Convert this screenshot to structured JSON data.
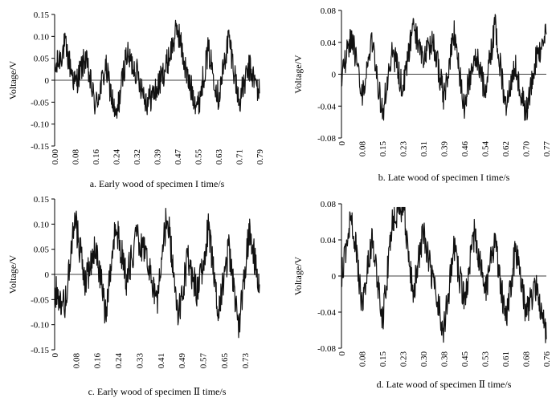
{
  "chart_data": [
    {
      "type": "line",
      "caption": "a. Early wood of specimen I time/s",
      "ylabel": "Voltage/V",
      "ylim": [
        -0.15,
        0.15
      ],
      "yticks": [
        -0.15,
        -0.1,
        -0.05,
        0,
        0.05,
        0.1,
        0.15
      ],
      "ytick_labels": [
        "-0.15",
        "-0.10",
        "-0.05",
        "0",
        "0.05",
        "0.10",
        "0.15"
      ],
      "xlim": [
        0,
        0.8
      ],
      "xtick_labels": [
        "0.00",
        "0.08",
        "0.16",
        "0.24",
        "0.32",
        "0.39",
        "0.47",
        "0.55",
        "0.63",
        "0.71",
        "0.79"
      ],
      "series": [
        {
          "x": [
            0.0,
            0.04,
            0.08,
            0.12,
            0.16,
            0.2,
            0.24,
            0.28,
            0.32,
            0.36,
            0.4,
            0.44,
            0.48,
            0.52,
            0.56,
            0.6,
            0.64,
            0.68,
            0.72,
            0.76,
            0.8
          ],
          "values": [
            0.02,
            0.08,
            -0.01,
            0.05,
            -0.06,
            0.03,
            -0.09,
            0.06,
            0.02,
            -0.05,
            -0.02,
            0.04,
            0.12,
            0.0,
            -0.06,
            0.07,
            -0.04,
            0.1,
            -0.05,
            0.03,
            -0.03
          ]
        }
      ]
    },
    {
      "type": "line",
      "caption": "b. Late wood of specimen I time/s",
      "ylabel": "Voltage/V",
      "ylim": [
        -0.08,
        0.08
      ],
      "yticks": [
        -0.08,
        -0.04,
        0,
        0.04,
        0.08
      ],
      "ytick_labels": [
        "-0.08",
        "-0.04",
        "0",
        "0.04",
        "0.08"
      ],
      "xlim": [
        0,
        0.8
      ],
      "xtick_labels": [
        "0",
        "0.08",
        "0.15",
        "0.23",
        "0.31",
        "0.39",
        "0.46",
        "0.54",
        "0.62",
        "0.70",
        "0.77"
      ],
      "series": [
        {
          "x": [
            0.0,
            0.04,
            0.08,
            0.12,
            0.16,
            0.2,
            0.24,
            0.28,
            0.32,
            0.36,
            0.4,
            0.44,
            0.48,
            0.52,
            0.56,
            0.6,
            0.64,
            0.68,
            0.72,
            0.76,
            0.8
          ],
          "values": [
            0.0,
            0.05,
            -0.03,
            0.04,
            -0.05,
            0.03,
            -0.02,
            0.06,
            0.02,
            0.04,
            -0.03,
            0.05,
            -0.04,
            0.03,
            -0.02,
            0.06,
            -0.04,
            0.01,
            -0.05,
            0.02,
            0.05
          ]
        }
      ]
    },
    {
      "type": "line",
      "caption": "c. Early wood of specimen Ⅱ time/s",
      "ylabel": "Voltage/V",
      "ylim": [
        -0.15,
        0.15
      ],
      "yticks": [
        -0.15,
        -0.1,
        -0.05,
        0,
        0.05,
        0.1,
        0.15
      ],
      "ytick_labels": [
        "-0.15",
        "-0.10",
        "-0.05",
        "0",
        "0.05",
        "0.10",
        "0.15"
      ],
      "xlim": [
        0,
        0.8
      ],
      "xtick_labels": [
        "0",
        "0.08",
        "0.16",
        "0.24",
        "0.33",
        "0.41",
        "0.49",
        "0.57",
        "0.65",
        "0.73"
      ],
      "series": [
        {
          "x": [
            0.0,
            0.04,
            0.08,
            0.12,
            0.16,
            0.2,
            0.24,
            0.28,
            0.32,
            0.36,
            0.4,
            0.44,
            0.48,
            0.52,
            0.56,
            0.6,
            0.64,
            0.68,
            0.72,
            0.76,
            0.8
          ],
          "values": [
            -0.03,
            -0.06,
            0.11,
            -0.02,
            0.06,
            -0.08,
            0.1,
            -0.01,
            0.07,
            0.04,
            -0.06,
            0.13,
            -0.09,
            0.03,
            -0.04,
            0.09,
            -0.07,
            0.05,
            -0.1,
            0.09,
            -0.02
          ]
        }
      ]
    },
    {
      "type": "line",
      "caption": "d. Late wood of specimen Ⅱ time/s",
      "ylabel": "Voltage/V",
      "ylim": [
        -0.08,
        0.08
      ],
      "yticks": [
        -0.08,
        -0.04,
        0,
        0.04,
        0.08
      ],
      "ytick_labels": [
        "-0.08",
        "-0.04",
        "0",
        "0.04",
        "0.08"
      ],
      "xlim": [
        0,
        0.8
      ],
      "xtick_labels": [
        "0",
        "0.08",
        "0.15",
        "0.23",
        "0.30",
        "0.38",
        "0.45",
        "0.53",
        "0.61",
        "0.68",
        "0.76"
      ],
      "series": [
        {
          "x": [
            0.0,
            0.04,
            0.08,
            0.12,
            0.16,
            0.2,
            0.24,
            0.28,
            0.32,
            0.36,
            0.4,
            0.44,
            0.48,
            0.52,
            0.56,
            0.6,
            0.64,
            0.68,
            0.72,
            0.76,
            0.8
          ],
          "values": [
            0.0,
            0.07,
            -0.03,
            0.04,
            -0.05,
            0.06,
            0.08,
            -0.02,
            0.05,
            -0.01,
            -0.06,
            0.03,
            -0.03,
            0.05,
            -0.02,
            0.04,
            -0.05,
            0.03,
            -0.04,
            -0.01,
            -0.07
          ]
        }
      ]
    }
  ]
}
